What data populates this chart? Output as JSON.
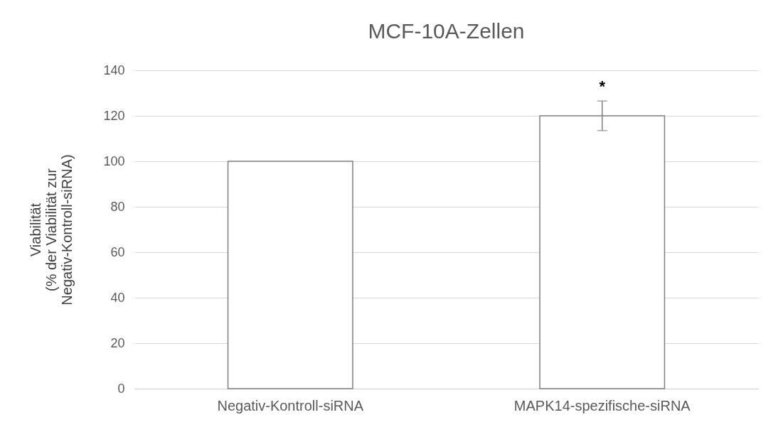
{
  "chart_data": {
    "type": "bar",
    "title": "MCF-10A-Zellen",
    "ylabel": "Viabilität\n(% der Viabilität zur\nNegativ-Kontroll-siRNA)",
    "categories": [
      "Negativ-Kontroll-siRNA",
      "MAPK14-spezifische-siRNA"
    ],
    "values": [
      100,
      120
    ],
    "errors": [
      null,
      6.5
    ],
    "color": "#ffffff",
    "ylim": [
      0,
      140
    ],
    "yticks": [
      0,
      20,
      40,
      60,
      80,
      100,
      120,
      140
    ],
    "grid": "y",
    "annotations": [
      "*"
    ]
  }
}
